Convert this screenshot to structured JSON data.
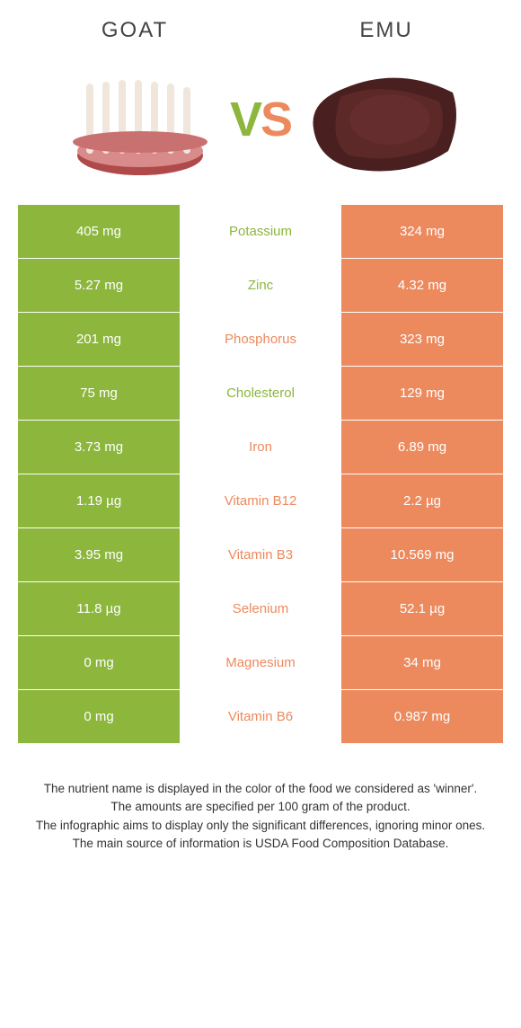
{
  "header": {
    "left_title": "Goat",
    "right_title": "Emu",
    "vs_v": "V",
    "vs_s": "S"
  },
  "colors": {
    "green": "#8cb63c",
    "orange": "#ec8a5e",
    "white": "#ffffff",
    "text": "#333333"
  },
  "rows": [
    {
      "left": "405 mg",
      "label": "Potassium",
      "right": "324 mg",
      "winner": "left"
    },
    {
      "left": "5.27 mg",
      "label": "Zinc",
      "right": "4.32 mg",
      "winner": "left"
    },
    {
      "left": "201 mg",
      "label": "Phosphorus",
      "right": "323 mg",
      "winner": "right"
    },
    {
      "left": "75 mg",
      "label": "Cholesterol",
      "right": "129 mg",
      "winner": "left"
    },
    {
      "left": "3.73 mg",
      "label": "Iron",
      "right": "6.89 mg",
      "winner": "right"
    },
    {
      "left": "1.19 µg",
      "label": "Vitamin B12",
      "right": "2.2 µg",
      "winner": "right"
    },
    {
      "left": "3.95 mg",
      "label": "Vitamin B3",
      "right": "10.569 mg",
      "winner": "right"
    },
    {
      "left": "11.8 µg",
      "label": "Selenium",
      "right": "52.1 µg",
      "winner": "right"
    },
    {
      "left": "0 mg",
      "label": "Magnesium",
      "right": "34 mg",
      "winner": "right"
    },
    {
      "left": "0 mg",
      "label": "Vitamin B6",
      "right": "0.987 mg",
      "winner": "right"
    }
  ],
  "footer": {
    "line1": "The nutrient name is displayed in the color of the food we considered as 'winner'.",
    "line2": "The amounts are specified per 100 gram of the product.",
    "line3": "The infographic aims to display only the significant differences, ignoring minor ones.",
    "line4": "The main source of information is USDA Food Composition Database."
  }
}
